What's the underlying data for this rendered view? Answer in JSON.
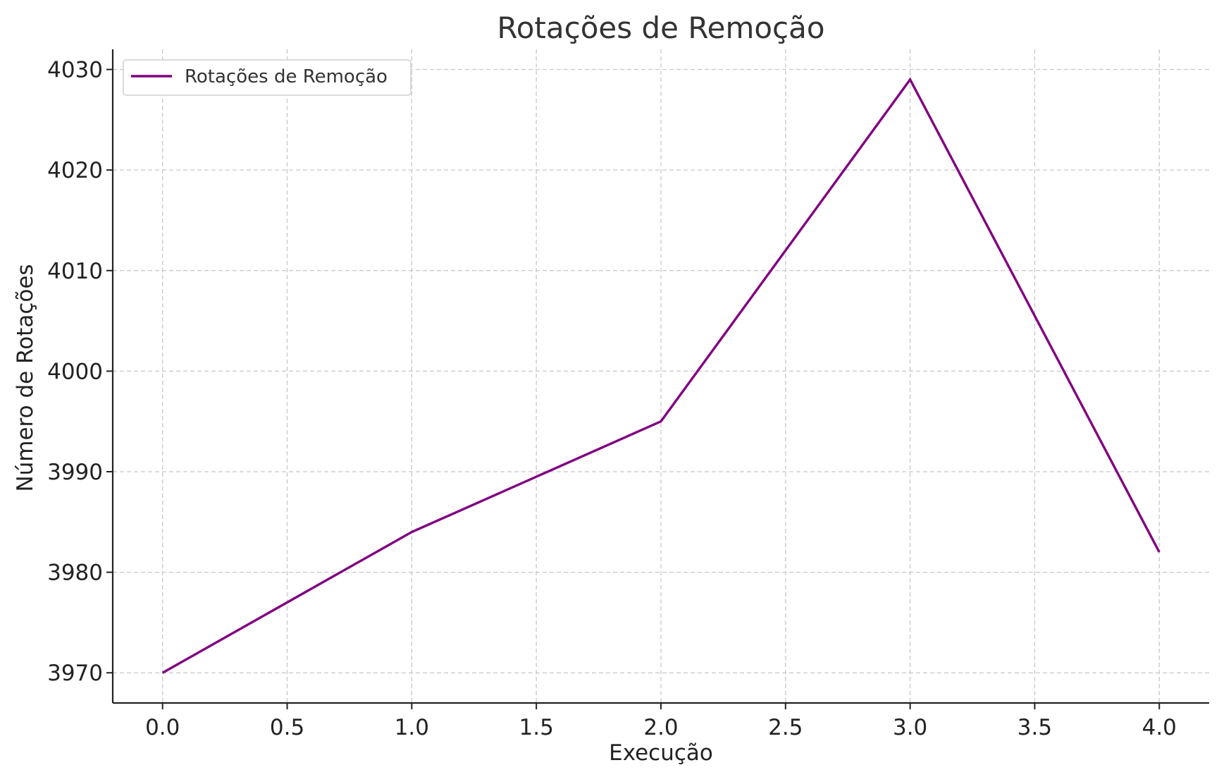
{
  "chart_data": {
    "type": "line",
    "title": "Rotações de Remoção",
    "xlabel": "Execução",
    "ylabel": "Número de Rotações",
    "x": [
      0,
      1,
      2,
      3,
      4
    ],
    "series": [
      {
        "name": "Rotações de Remoção",
        "values": [
          3970,
          3984,
          3995,
          4029,
          3982
        ],
        "color": "#800080"
      }
    ],
    "xlim": [
      -0.2,
      4.2
    ],
    "ylim": [
      3967,
      4032
    ],
    "xticks": [
      0.0,
      0.5,
      1.0,
      1.5,
      2.0,
      2.5,
      3.0,
      3.5,
      4.0
    ],
    "xtick_labels": [
      "0.0",
      "0.5",
      "1.0",
      "1.5",
      "2.0",
      "2.5",
      "3.0",
      "3.5",
      "4.0"
    ],
    "yticks": [
      3970,
      3980,
      3990,
      4000,
      4010,
      4020,
      4030
    ],
    "ytick_labels": [
      "3970",
      "3980",
      "3990",
      "4000",
      "4010",
      "4020",
      "4030"
    ],
    "grid": true,
    "legend": "top-left"
  }
}
